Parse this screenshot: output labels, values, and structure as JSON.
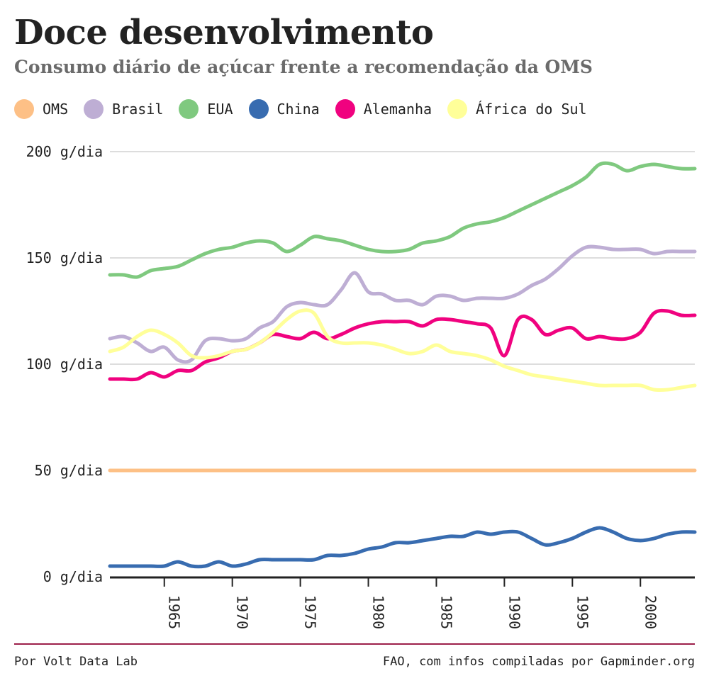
{
  "header": {
    "title": "Doce desenvolvimento",
    "subtitle": "Consumo diário de açúcar frente a recomendação da OMS"
  },
  "footer": {
    "credit": "Por Volt Data Lab",
    "source": "FAO, com infos compiladas por Gapminder.org"
  },
  "chart_data": {
    "type": "line",
    "title": "Doce desenvolvimento",
    "subtitle": "Consumo diário de açúcar frente a recomendação da OMS",
    "xlim": [
      1961,
      2004
    ],
    "ylim": [
      0,
      200
    ],
    "grid": true,
    "legend_position": "top",
    "y_ticks": [
      {
        "value": 0,
        "label": "0 g/dia"
      },
      {
        "value": 50,
        "label": "50 g/dia"
      },
      {
        "value": 100,
        "label": "100 g/dia"
      },
      {
        "value": 150,
        "label": "150 g/dia"
      },
      {
        "value": 200,
        "label": "200 g/dia"
      }
    ],
    "x_ticks": [
      {
        "value": 1965,
        "label": "1965"
      },
      {
        "value": 1970,
        "label": "1970"
      },
      {
        "value": 1975,
        "label": "1975"
      },
      {
        "value": 1980,
        "label": "1980"
      },
      {
        "value": 1985,
        "label": "1985"
      },
      {
        "value": 1990,
        "label": "1990"
      },
      {
        "value": 1995,
        "label": "1995"
      },
      {
        "value": 2000,
        "label": "2000"
      }
    ],
    "x": [
      1961,
      1962,
      1963,
      1964,
      1965,
      1966,
      1967,
      1968,
      1969,
      1970,
      1971,
      1972,
      1973,
      1974,
      1975,
      1976,
      1977,
      1978,
      1979,
      1980,
      1981,
      1982,
      1983,
      1984,
      1985,
      1986,
      1987,
      1988,
      1989,
      1990,
      1991,
      1992,
      1993,
      1994,
      1995,
      1996,
      1997,
      1998,
      1999,
      2000,
      2001,
      2002,
      2003,
      2004
    ],
    "series": [
      {
        "name": "OMS",
        "color": "#fdc086",
        "values": [
          50,
          50,
          50,
          50,
          50,
          50,
          50,
          50,
          50,
          50,
          50,
          50,
          50,
          50,
          50,
          50,
          50,
          50,
          50,
          50,
          50,
          50,
          50,
          50,
          50,
          50,
          50,
          50,
          50,
          50,
          50,
          50,
          50,
          50,
          50,
          50,
          50,
          50,
          50,
          50,
          50,
          50,
          50,
          50
        ]
      },
      {
        "name": "Brasil",
        "color": "#beaed4",
        "values": [
          112,
          113,
          110,
          106,
          108,
          102,
          102,
          111,
          112,
          111,
          112,
          117,
          120,
          127,
          129,
          128,
          128,
          135,
          143,
          134,
          133,
          130,
          130,
          128,
          132,
          132,
          130,
          131,
          131,
          131,
          133,
          137,
          140,
          145,
          151,
          155,
          155,
          154,
          154,
          154,
          152,
          153,
          153,
          153
        ]
      },
      {
        "name": "EUA",
        "color": "#7fc97f",
        "values": [
          142,
          142,
          141,
          144,
          145,
          146,
          149,
          152,
          154,
          155,
          157,
          158,
          157,
          153,
          156,
          160,
          159,
          158,
          156,
          154,
          153,
          153,
          154,
          157,
          158,
          160,
          164,
          166,
          167,
          169,
          172,
          175,
          178,
          181,
          184,
          188,
          194,
          194,
          191,
          193,
          194,
          193,
          192,
          192
        ]
      },
      {
        "name": "China",
        "color": "#386cb0",
        "values": [
          5,
          5,
          5,
          5,
          5,
          7,
          5,
          5,
          7,
          5,
          6,
          8,
          8,
          8,
          8,
          8,
          10,
          10,
          11,
          13,
          14,
          16,
          16,
          17,
          18,
          19,
          19,
          21,
          20,
          21,
          21,
          18,
          15,
          16,
          18,
          21,
          23,
          21,
          18,
          17,
          18,
          20,
          21,
          21
        ]
      },
      {
        "name": "Alemanha",
        "color": "#f0027f",
        "values": [
          93,
          93,
          93,
          96,
          94,
          97,
          97,
          101,
          103,
          106,
          107,
          110,
          114,
          113,
          112,
          115,
          112,
          114,
          117,
          119,
          120,
          120,
          120,
          118,
          121,
          121,
          120,
          119,
          117,
          104,
          121,
          121,
          114,
          116,
          117,
          112,
          113,
          112,
          112,
          115,
          124,
          125,
          123,
          123
        ]
      },
      {
        "name": "África do Sul",
        "color": "#ffff99",
        "values": [
          106,
          108,
          113,
          116,
          114,
          110,
          104,
          103,
          104,
          106,
          107,
          110,
          115,
          121,
          125,
          124,
          113,
          110,
          110,
          110,
          109,
          107,
          105,
          106,
          109,
          106,
          105,
          104,
          102,
          99,
          97,
          95,
          94,
          93,
          92,
          91,
          90,
          90,
          90,
          90,
          88,
          88,
          89,
          90
        ]
      }
    ]
  }
}
